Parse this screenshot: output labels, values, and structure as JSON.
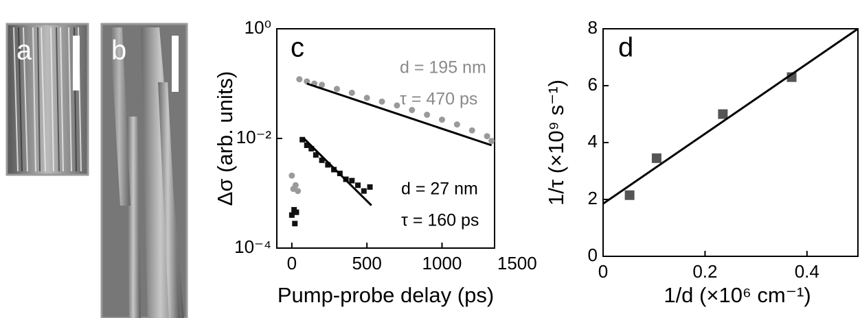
{
  "images": [
    {
      "label": "a"
    },
    {
      "label": "b"
    }
  ],
  "chart_data": [
    {
      "type": "scatter",
      "panel_label": "c",
      "log_y": true,
      "xlabel": "Pump-probe delay (ps)",
      "ylabel": "Δσ (arb. units)",
      "xlim": [
        -100,
        1350
      ],
      "xticks": [
        0,
        500,
        1000,
        1500
      ],
      "ylim": [
        0.0001,
        1
      ],
      "yticks": [
        {
          "value": 0.0001,
          "label": "10⁻⁴"
        },
        {
          "value": 0.01,
          "label": "10⁻²"
        },
        {
          "value": 1,
          "label": "10⁰"
        }
      ],
      "annotations": [
        "d = 195 nm",
        "τ = 470 ps",
        "d = 27 nm",
        "τ = 160 ps"
      ],
      "series": [
        {
          "mode": "markers",
          "marker": "circle",
          "color": "#9a9a9a",
          "x": [
            0,
            10,
            25,
            40,
            50,
            100,
            150,
            200,
            300,
            400,
            500,
            600,
            700,
            800,
            900,
            1000,
            1100,
            1200,
            1300,
            1330
          ],
          "values": [
            0.0021,
            0.0012,
            0.0014,
            0.0011,
            0.12,
            0.11,
            0.1,
            0.095,
            0.08,
            0.068,
            0.055,
            0.047,
            0.04,
            0.033,
            0.027,
            0.022,
            0.018,
            0.014,
            0.011,
            0.009
          ]
        },
        {
          "mode": "markers",
          "marker": "square",
          "color": "#111111",
          "x": [
            0,
            15,
            30,
            20,
            70,
            100,
            130,
            160,
            200,
            240,
            280,
            320,
            360,
            400,
            440,
            480,
            520
          ],
          "values": [
            0.0004,
            0.0005,
            0.00045,
            0.00028,
            0.0095,
            0.0075,
            0.0065,
            0.005,
            0.004,
            0.0033,
            0.0027,
            0.0023,
            0.0018,
            0.0017,
            0.0014,
            0.0011,
            0.0013
          ]
        },
        {
          "mode": "line",
          "color": "#000000",
          "x": [
            100,
            1330
          ],
          "values": [
            0.1,
            0.0075
          ]
        },
        {
          "mode": "line",
          "color": "#000000",
          "x": [
            80,
            530
          ],
          "values": [
            0.01,
            0.0006
          ]
        }
      ]
    },
    {
      "type": "scatter",
      "panel_label": "d",
      "log_y": false,
      "xlabel": "1/d (×10⁶ cm⁻¹)",
      "ylabel": "1/τ (×10⁹ s⁻¹)",
      "xlim": [
        0,
        0.5
      ],
      "xticks": [
        0,
        0.2,
        0.4
      ],
      "ylim": [
        0,
        8
      ],
      "yticks": [
        0,
        2,
        4,
        6,
        8
      ],
      "series": [
        {
          "mode": "markers",
          "marker": "square",
          "color": "#555555",
          "x": [
            0.052,
            0.105,
            0.235,
            0.37
          ],
          "values": [
            2.15,
            3.45,
            5.0,
            6.3
          ]
        },
        {
          "mode": "line",
          "color": "#000000",
          "x": [
            0,
            0.5
          ],
          "values": [
            1.85,
            8.0
          ]
        }
      ]
    }
  ]
}
